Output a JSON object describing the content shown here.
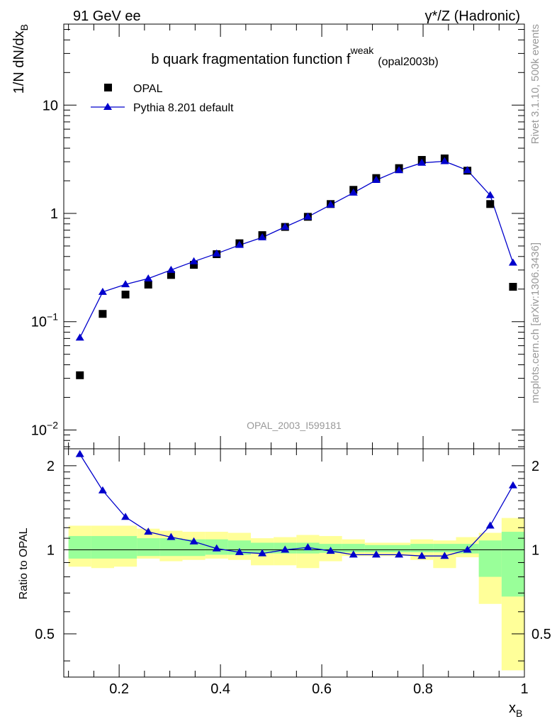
{
  "header": {
    "left": "91 GeV ee",
    "right": "γ*/Z (Hadronic)"
  },
  "side_labels": {
    "rivet": "Rivet 3.1.10,  500k events",
    "mcplots": "mcplots.cern.ch [arXiv:1306.3436]"
  },
  "colors": {
    "mc": "#0000cc",
    "data": "#000000",
    "band_inner": "#99ff99",
    "band_outer": "#ffff99",
    "watermark": "#999999"
  },
  "chart_data": [
    {
      "type": "scatter",
      "title": "b quark fragmentation function f",
      "title_sup": "weak",
      "title_suffix": "(opal2003b)",
      "ylabel": "1/N dN/dx",
      "ylabel_sub": "B",
      "yscale": "log",
      "ylim": [
        0.0067,
        56
      ],
      "xlim": [
        0.0907,
        1.0
      ],
      "y_ticks": [
        {
          "value": 0.01,
          "base": "10",
          "exp": "−2"
        },
        {
          "value": 0.1,
          "base": "10",
          "exp": "−1"
        },
        {
          "value": 1,
          "base": "1",
          "exp": ""
        },
        {
          "value": 10,
          "base": "10",
          "exp": ""
        }
      ],
      "legend_position": "top-left",
      "watermark": "OPAL_2003_I599181",
      "series": [
        {
          "name": "OPAL",
          "marker": "square",
          "x": [
            0.1225,
            0.1675,
            0.2125,
            0.2575,
            0.3025,
            0.3475,
            0.3925,
            0.4375,
            0.4825,
            0.5275,
            0.5725,
            0.6175,
            0.6625,
            0.7075,
            0.7525,
            0.7975,
            0.8425,
            0.8875,
            0.9325,
            0.9775
          ],
          "values": [
            0.032,
            0.118,
            0.178,
            0.22,
            0.27,
            0.335,
            0.42,
            0.53,
            0.63,
            0.75,
            0.93,
            1.22,
            1.65,
            2.12,
            2.62,
            3.12,
            3.22,
            2.48,
            1.22,
            0.21
          ]
        },
        {
          "name": "Pythia 8.201 default",
          "marker": "triangle",
          "line": true,
          "x": [
            0.1225,
            0.1675,
            0.2125,
            0.2575,
            0.3025,
            0.3475,
            0.3925,
            0.4375,
            0.4825,
            0.5275,
            0.5725,
            0.6175,
            0.6625,
            0.7075,
            0.7525,
            0.7975,
            0.8425,
            0.8875,
            0.9325,
            0.9775
          ],
          "values": [
            0.071,
            0.188,
            0.221,
            0.25,
            0.3,
            0.36,
            0.425,
            0.51,
            0.6,
            0.75,
            0.93,
            1.2,
            1.55,
            2.03,
            2.5,
            2.93,
            3.03,
            2.5,
            1.47,
            0.35
          ]
        }
      ]
    },
    {
      "type": "line",
      "ylabel": "Ratio to OPAL",
      "xlabel": "x",
      "xlabel_sub": "B",
      "ylim": [
        0.35,
        2.3
      ],
      "xlim": [
        0.0907,
        1.0
      ],
      "y_ticks": [
        0.5,
        1,
        2
      ],
      "y_tick_labels": [
        "0.5",
        "1",
        "2"
      ],
      "x_ticks": [
        0.2,
        0.4,
        0.6,
        0.8,
        1.0
      ],
      "x_tick_labels": [
        "0.2",
        "0.4",
        "0.6",
        "0.8",
        "1"
      ],
      "reference_line": 1,
      "bands": {
        "x_edges": [
          0.1,
          0.145,
          0.19,
          0.235,
          0.28,
          0.325,
          0.37,
          0.415,
          0.46,
          0.505,
          0.55,
          0.595,
          0.64,
          0.685,
          0.73,
          0.775,
          0.82,
          0.865,
          0.91,
          0.955,
          1.0
        ],
        "inner_low": [
          0.93,
          0.93,
          0.93,
          0.95,
          0.95,
          0.95,
          0.96,
          0.96,
          0.97,
          0.97,
          0.97,
          0.975,
          0.98,
          0.98,
          0.98,
          0.98,
          0.98,
          0.97,
          0.8,
          0.68
        ],
        "inner_high": [
          1.12,
          1.12,
          1.12,
          1.1,
          1.1,
          1.09,
          1.09,
          1.08,
          1.06,
          1.06,
          1.06,
          1.05,
          1.05,
          1.04,
          1.04,
          1.05,
          1.05,
          1.05,
          1.08,
          1.16
        ],
        "outer_low": [
          0.87,
          0.86,
          0.87,
          0.93,
          0.91,
          0.92,
          0.93,
          0.92,
          0.88,
          0.88,
          0.86,
          0.91,
          0.95,
          0.95,
          0.95,
          0.92,
          0.86,
          0.94,
          0.64,
          0.37
        ],
        "outer_high": [
          1.22,
          1.22,
          1.22,
          1.19,
          1.17,
          1.16,
          1.16,
          1.15,
          1.1,
          1.11,
          1.13,
          1.12,
          1.09,
          1.06,
          1.06,
          1.09,
          1.08,
          1.11,
          1.15,
          1.3
        ]
      },
      "series": [
        {
          "name": "Pythia 8.201 default",
          "x": [
            0.1225,
            0.1675,
            0.2125,
            0.2575,
            0.3025,
            0.3475,
            0.3925,
            0.4375,
            0.4825,
            0.5275,
            0.5725,
            0.6175,
            0.6625,
            0.7075,
            0.7525,
            0.7975,
            0.8425,
            0.8875,
            0.9325,
            0.9775
          ],
          "values": [
            2.2,
            1.63,
            1.31,
            1.16,
            1.11,
            1.07,
            1.01,
            0.98,
            0.97,
            1.0,
            1.02,
            0.99,
            0.96,
            0.96,
            0.96,
            0.95,
            0.95,
            1.0,
            1.22,
            1.7
          ]
        }
      ]
    }
  ]
}
